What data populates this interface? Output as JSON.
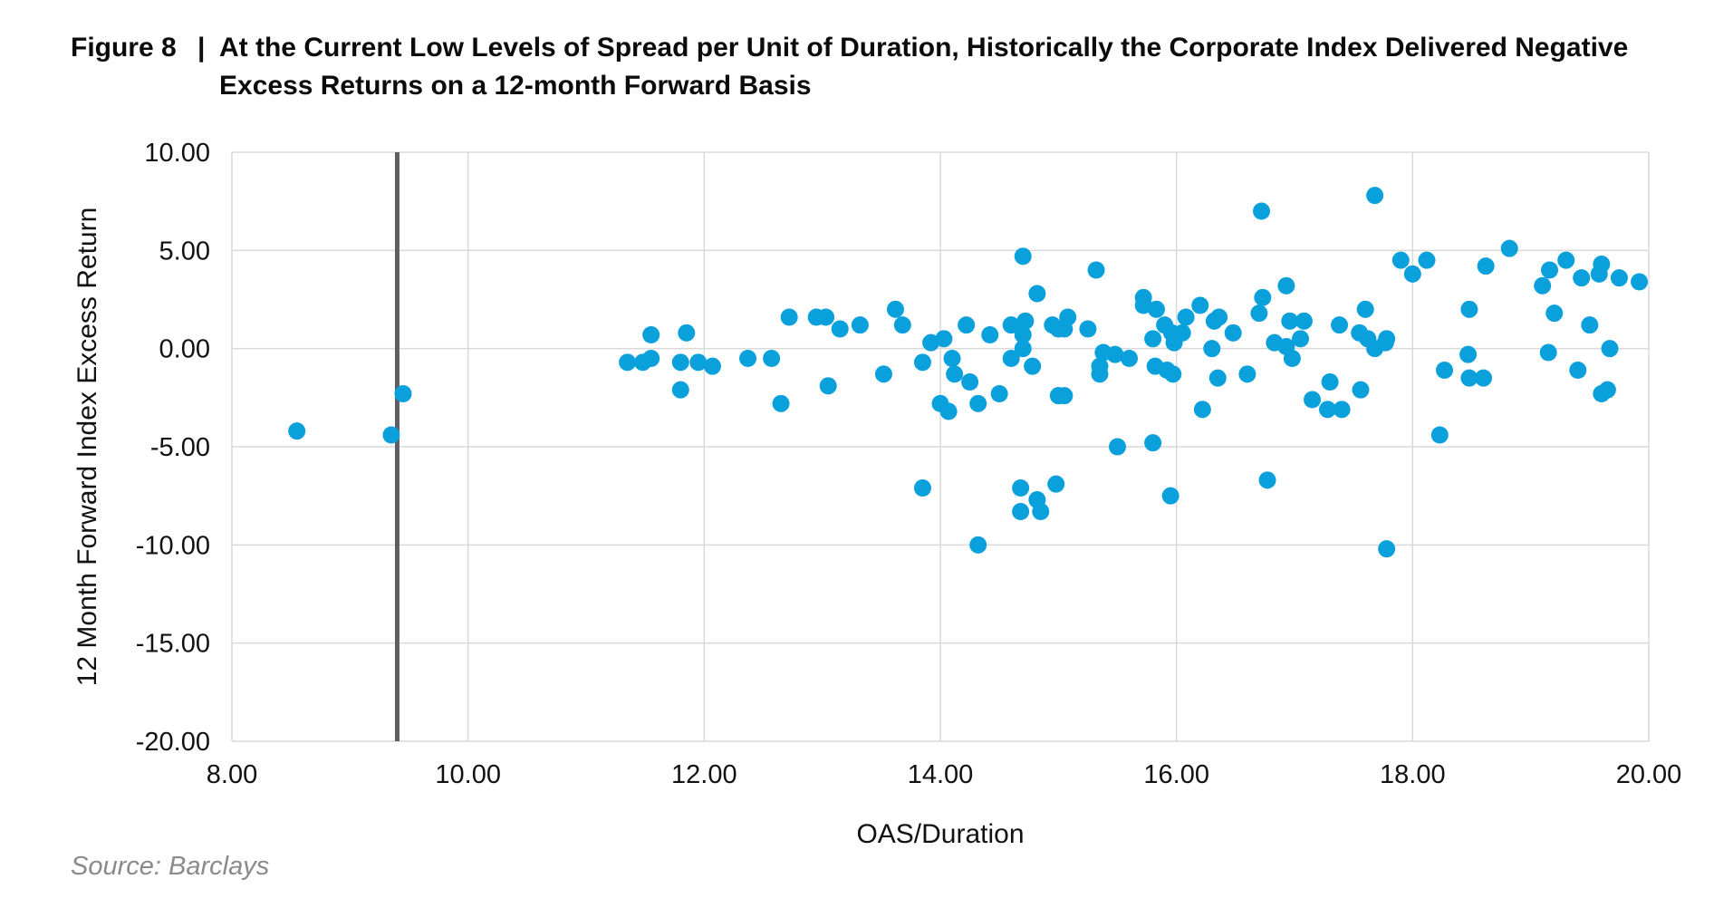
{
  "figure": {
    "label": "Figure 8",
    "separator": "|",
    "title": "At the Current Low Levels of Spread per Unit of Duration, Historically the Corporate Index Delivered Negative Excess Returns on a 12-month Forward Basis",
    "source": "Source: Barclays"
  },
  "chart_data": {
    "type": "scatter",
    "xlabel": "OAS/Duration",
    "ylabel": "12 Month Forward Index Excess Return",
    "xlim": [
      8,
      20
    ],
    "ylim": [
      -20,
      10
    ],
    "xticks": [
      "8.00",
      "10.00",
      "12.00",
      "14.00",
      "16.00",
      "18.00",
      "20.00"
    ],
    "yticks": [
      "10.00",
      "5.00",
      "0.00",
      "-5.00",
      "-10.00",
      "-15.00",
      "-20.00"
    ],
    "grid": true,
    "legend": "none",
    "marker_color": "#0aa0dc",
    "reference_line": {
      "x": 9.4,
      "color": "#5e5e66"
    },
    "series": [
      {
        "points": [
          [
            8.55,
            -4.2
          ],
          [
            9.35,
            -4.4
          ],
          [
            9.45,
            -2.3
          ],
          [
            11.35,
            -0.7
          ],
          [
            11.48,
            -0.7
          ],
          [
            11.55,
            0.7
          ],
          [
            11.55,
            -0.5
          ],
          [
            11.8,
            -0.7
          ],
          [
            11.8,
            -2.1
          ],
          [
            11.85,
            0.8
          ],
          [
            11.95,
            -0.7
          ],
          [
            12.07,
            -0.9
          ],
          [
            12.37,
            -0.5
          ],
          [
            12.57,
            -0.5
          ],
          [
            12.65,
            -2.8
          ],
          [
            12.72,
            1.6
          ],
          [
            12.95,
            1.6
          ],
          [
            13.03,
            1.6
          ],
          [
            13.05,
            -1.9
          ],
          [
            13.15,
            1.0
          ],
          [
            13.32,
            1.2
          ],
          [
            13.52,
            -1.3
          ],
          [
            13.62,
            2.0
          ],
          [
            13.68,
            1.2
          ],
          [
            13.85,
            -0.7
          ],
          [
            13.85,
            -7.1
          ],
          [
            13.92,
            0.3
          ],
          [
            14.0,
            -2.8
          ],
          [
            14.03,
            0.5
          ],
          [
            14.07,
            -3.2
          ],
          [
            14.1,
            -0.5
          ],
          [
            14.12,
            -1.3
          ],
          [
            14.22,
            1.2
          ],
          [
            14.25,
            -1.7
          ],
          [
            14.32,
            -10.0
          ],
          [
            14.32,
            -2.8
          ],
          [
            14.42,
            0.7
          ],
          [
            14.5,
            -2.3
          ],
          [
            14.6,
            1.2
          ],
          [
            14.6,
            -0.5
          ],
          [
            14.68,
            -7.1
          ],
          [
            14.68,
            -8.3
          ],
          [
            14.7,
            4.7
          ],
          [
            14.7,
            0.7
          ],
          [
            14.7,
            0.0
          ],
          [
            14.72,
            1.4
          ],
          [
            14.78,
            -0.9
          ],
          [
            14.82,
            2.8
          ],
          [
            14.82,
            -7.7
          ],
          [
            14.85,
            -8.3
          ],
          [
            14.95,
            1.2
          ],
          [
            14.98,
            -6.9
          ],
          [
            15.0,
            -2.4
          ],
          [
            15.0,
            1.0
          ],
          [
            15.05,
            -2.4
          ],
          [
            15.05,
            1.0
          ],
          [
            15.08,
            1.6
          ],
          [
            15.25,
            1.0
          ],
          [
            15.32,
            4.0
          ],
          [
            15.35,
            -0.9
          ],
          [
            15.35,
            -1.3
          ],
          [
            15.38,
            -0.2
          ],
          [
            15.48,
            -0.3
          ],
          [
            15.5,
            -5.0
          ],
          [
            15.6,
            -0.5
          ],
          [
            15.72,
            2.6
          ],
          [
            15.72,
            2.2
          ],
          [
            15.8,
            -4.8
          ],
          [
            15.8,
            0.5
          ],
          [
            15.82,
            -0.9
          ],
          [
            15.83,
            2.0
          ],
          [
            15.9,
            1.2
          ],
          [
            15.92,
            -1.1
          ],
          [
            15.95,
            -7.5
          ],
          [
            15.96,
            0.8
          ],
          [
            15.97,
            -1.3
          ],
          [
            15.98,
            0.3
          ],
          [
            16.05,
            0.8
          ],
          [
            16.08,
            1.6
          ],
          [
            16.2,
            2.2
          ],
          [
            16.22,
            -3.1
          ],
          [
            16.3,
            0.0
          ],
          [
            16.32,
            1.4
          ],
          [
            16.35,
            -1.5
          ],
          [
            16.36,
            1.6
          ],
          [
            16.48,
            0.8
          ],
          [
            16.6,
            -1.3
          ],
          [
            16.7,
            1.8
          ],
          [
            16.72,
            7.0
          ],
          [
            16.73,
            2.6
          ],
          [
            16.77,
            -6.7
          ],
          [
            16.83,
            0.3
          ],
          [
            16.93,
            0.1
          ],
          [
            16.93,
            3.2
          ],
          [
            16.96,
            1.4
          ],
          [
            16.98,
            -0.5
          ],
          [
            17.05,
            0.5
          ],
          [
            17.08,
            1.4
          ],
          [
            17.15,
            -2.6
          ],
          [
            17.28,
            -3.1
          ],
          [
            17.3,
            -1.7
          ],
          [
            17.38,
            1.2
          ],
          [
            17.4,
            -3.1
          ],
          [
            17.55,
            0.8
          ],
          [
            17.56,
            -2.1
          ],
          [
            17.6,
            2.0
          ],
          [
            17.62,
            0.5
          ],
          [
            17.68,
            7.8
          ],
          [
            17.68,
            0.0
          ],
          [
            17.77,
            0.3
          ],
          [
            17.78,
            0.5
          ],
          [
            17.78,
            -10.2
          ],
          [
            17.9,
            4.5
          ],
          [
            18.0,
            3.8
          ],
          [
            18.12,
            4.5
          ],
          [
            18.23,
            -4.4
          ],
          [
            18.27,
            -1.1
          ],
          [
            18.47,
            -0.3
          ],
          [
            18.48,
            2.0
          ],
          [
            18.48,
            -1.5
          ],
          [
            18.6,
            -1.5
          ],
          [
            18.62,
            4.2
          ],
          [
            18.82,
            5.1
          ],
          [
            19.1,
            3.2
          ],
          [
            19.15,
            -0.2
          ],
          [
            19.16,
            4.0
          ],
          [
            19.2,
            1.8
          ],
          [
            19.3,
            4.5
          ],
          [
            19.4,
            -1.1
          ],
          [
            19.43,
            3.6
          ],
          [
            19.5,
            1.2
          ],
          [
            19.58,
            3.8
          ],
          [
            19.6,
            4.3
          ],
          [
            19.6,
            -2.3
          ],
          [
            19.65,
            -2.1
          ],
          [
            19.67,
            0.0
          ],
          [
            19.75,
            3.6
          ],
          [
            19.92,
            3.4
          ]
        ]
      }
    ]
  }
}
